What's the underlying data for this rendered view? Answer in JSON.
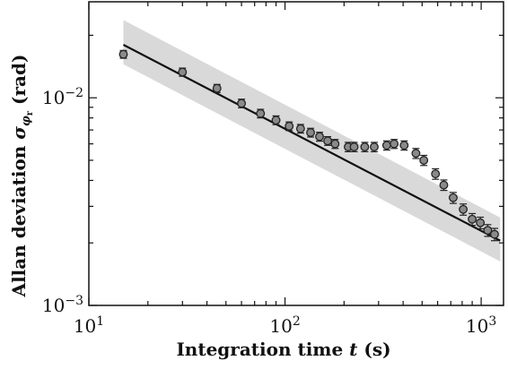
{
  "chart_data": {
    "type": "scatter",
    "title": "",
    "xlabel": {
      "text": "Integration time ",
      "var": "t",
      "unit": " (s)"
    },
    "ylabel": {
      "text": "Allan deviation ",
      "symbol": "σ",
      "sub": "φ",
      "subsub": "r",
      "unit": " (rad)"
    },
    "x_scale": "log",
    "y_scale": "log",
    "xlim": [
      10,
      1300
    ],
    "ylim": [
      0.001,
      0.029
    ],
    "x_ticks": [
      {
        "value": 10,
        "base": "10",
        "exp": "1"
      },
      {
        "value": 100,
        "base": "10",
        "exp": "2"
      },
      {
        "value": 1000,
        "base": "10",
        "exp": "3"
      }
    ],
    "y_ticks": [
      {
        "value": 0.001,
        "base": "10",
        "exp": "−3"
      },
      {
        "value": 0.01,
        "base": "10",
        "exp": "−2"
      }
    ],
    "grid": false,
    "legend": "none",
    "colors": {
      "marker_fill": "#8a8a8a",
      "marker_edge": "#222222",
      "fit_line": "#111111",
      "band": "#d9d9d9"
    },
    "series": [
      {
        "kind": "points_with_errorbars",
        "points": [
          {
            "x": 15,
            "y": 0.0162,
            "err": 0.0007
          },
          {
            "x": 30,
            "y": 0.0133,
            "err": 0.0006
          },
          {
            "x": 45,
            "y": 0.0111,
            "err": 0.0005
          },
          {
            "x": 60,
            "y": 0.0094,
            "err": 0.00045
          },
          {
            "x": 75,
            "y": 0.0084,
            "err": 0.0004
          },
          {
            "x": 90,
            "y": 0.0078,
            "err": 0.00038
          },
          {
            "x": 105,
            "y": 0.0073,
            "err": 0.00035
          },
          {
            "x": 120,
            "y": 0.0071,
            "err": 0.00034
          },
          {
            "x": 135,
            "y": 0.0068,
            "err": 0.00033
          },
          {
            "x": 150,
            "y": 0.0065,
            "err": 0.00032
          },
          {
            "x": 165,
            "y": 0.0062,
            "err": 0.0003
          },
          {
            "x": 180,
            "y": 0.006,
            "err": 0.0003
          },
          {
            "x": 210,
            "y": 0.0058,
            "err": 0.0003
          },
          {
            "x": 225,
            "y": 0.0058,
            "err": 0.0003
          },
          {
            "x": 255,
            "y": 0.0058,
            "err": 0.0003
          },
          {
            "x": 285,
            "y": 0.0058,
            "err": 0.0003
          },
          {
            "x": 330,
            "y": 0.0059,
            "err": 0.0003
          },
          {
            "x": 360,
            "y": 0.006,
            "err": 0.0003
          },
          {
            "x": 405,
            "y": 0.0059,
            "err": 0.0003
          },
          {
            "x": 465,
            "y": 0.0054,
            "err": 0.0003
          },
          {
            "x": 510,
            "y": 0.005,
            "err": 0.00028
          },
          {
            "x": 585,
            "y": 0.0043,
            "err": 0.00025
          },
          {
            "x": 645,
            "y": 0.0038,
            "err": 0.00022
          },
          {
            "x": 720,
            "y": 0.0033,
            "err": 0.0002
          },
          {
            "x": 810,
            "y": 0.0029,
            "err": 0.00018
          },
          {
            "x": 900,
            "y": 0.0026,
            "err": 0.00017
          },
          {
            "x": 990,
            "y": 0.0025,
            "err": 0.00016
          },
          {
            "x": 1080,
            "y": 0.0023,
            "err": 0.00015
          },
          {
            "x": 1170,
            "y": 0.0022,
            "err": 0.00015
          }
        ]
      },
      {
        "kind": "fit_line",
        "points": [
          {
            "x": 15,
            "y": 0.018
          },
          {
            "x": 1250,
            "y": 0.00205
          }
        ]
      },
      {
        "kind": "uncertainty_band",
        "upper": [
          {
            "x": 15,
            "y": 0.0237
          },
          {
            "x": 1250,
            "y": 0.00265
          }
        ],
        "lower": [
          {
            "x": 15,
            "y": 0.0145
          },
          {
            "x": 1250,
            "y": 0.00163
          }
        ]
      }
    ]
  }
}
